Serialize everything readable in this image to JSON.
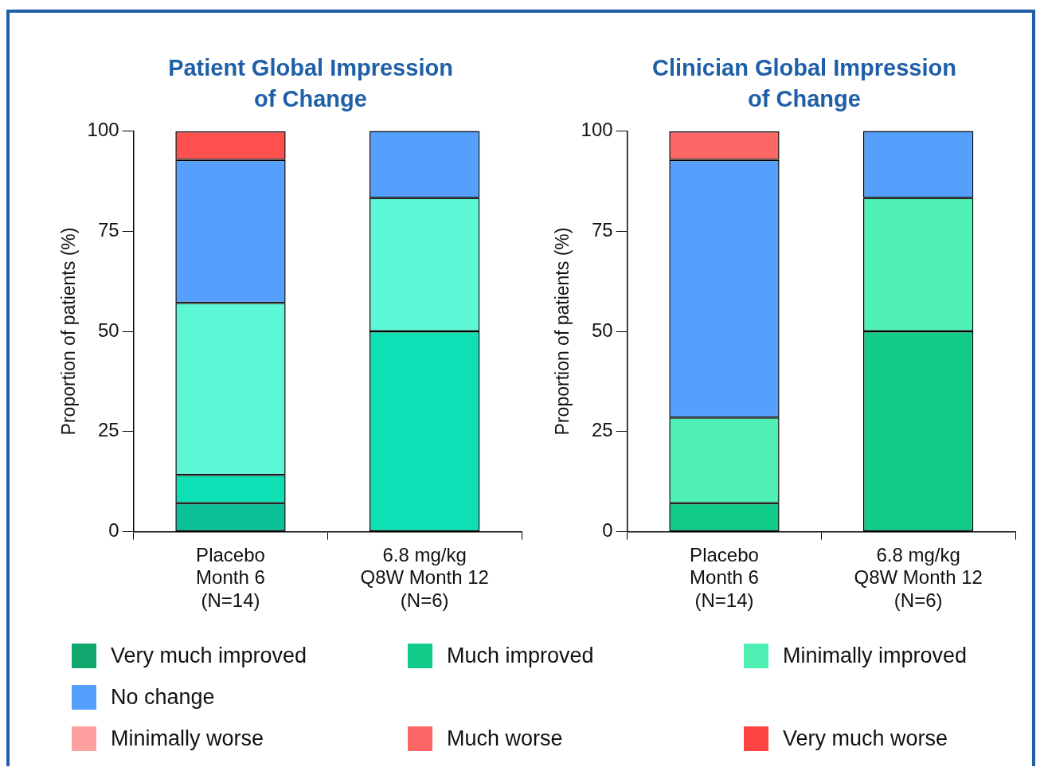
{
  "chart_data": [
    {
      "type": "bar",
      "stacked": true,
      "title": "Patient Global Impression of Change",
      "ylabel": "Proportion of patients (%)",
      "categories": [
        "Placebo\nMonth 6\n(N=14)",
        "6.8 mg/kg\nQ8W Month 12\n(N=6)"
      ],
      "ylim": [
        0,
        100
      ],
      "yticks": [
        0,
        25,
        50,
        75,
        100
      ],
      "series": [
        {
          "color": "#0bbf96",
          "values": [
            7.1,
            null
          ]
        },
        {
          "color": "#0de0b4",
          "values": [
            7.1,
            50
          ]
        },
        {
          "color": "#5cf7d5",
          "values": [
            42.9,
            33.3
          ]
        },
        {
          "color": "#55a0fc",
          "values": [
            35.7,
            16.7
          ]
        },
        {
          "color": "#ff5050",
          "values": [
            7.1,
            null
          ]
        }
      ]
    },
    {
      "type": "bar",
      "stacked": true,
      "title": "Clinician Global Impression of Change",
      "ylabel": "Proportion of patients (%)",
      "categories": [
        "Placebo\nMonth 6\n(N=14)",
        "6.8 mg/kg\nQ8W Month 12\n(N=6)"
      ],
      "ylim": [
        0,
        100
      ],
      "yticks": [
        0,
        25,
        50,
        75,
        100
      ],
      "legend": "bottom",
      "series": [
        {
          "name": "Very much improved",
          "color": "#10a86e",
          "values": [
            null,
            null
          ]
        },
        {
          "name": "Much improved",
          "color": "#11cc88",
          "values": [
            7.1,
            50
          ]
        },
        {
          "name": "Minimally improved",
          "color": "#4ff0b4",
          "values": [
            21.4,
            33.3
          ]
        },
        {
          "name": "No change",
          "color": "#55a0fc",
          "values": [
            64.3,
            16.7
          ]
        },
        {
          "name": "Minimally worse",
          "color": "#ffa0a0",
          "values": [
            null,
            null
          ]
        },
        {
          "name": "Much worse",
          "color": "#ff6666",
          "values": [
            7.1,
            null
          ]
        },
        {
          "name": "Very much worse",
          "color": "#ff4444",
          "values": [
            null,
            null
          ]
        }
      ]
    }
  ]
}
